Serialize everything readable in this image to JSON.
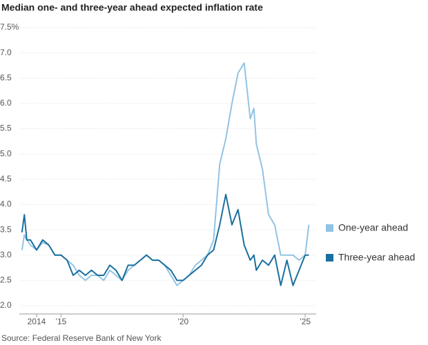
{
  "chart_data": {
    "type": "line",
    "title": "Median one- and three-year ahead expected inflation rate",
    "source": "Source: Federal Reserve Bank of New York",
    "x": [
      2013.4,
      2013.5,
      2013.6,
      2013.75,
      2014.0,
      2014.25,
      2014.5,
      2014.75,
      2015.0,
      2015.25,
      2015.5,
      2015.75,
      2016.0,
      2016.25,
      2016.5,
      2016.75,
      2017.0,
      2017.25,
      2017.5,
      2017.75,
      2018.0,
      2018.25,
      2018.5,
      2018.75,
      2019.0,
      2019.25,
      2019.5,
      2019.75,
      2020.0,
      2020.25,
      2020.5,
      2020.75,
      2021.0,
      2021.25,
      2021.5,
      2021.75,
      2022.0,
      2022.25,
      2022.5,
      2022.75,
      2022.9,
      2023.0,
      2023.25,
      2023.5,
      2023.75,
      2024.0,
      2024.25,
      2024.5,
      2024.75,
      2025.0,
      2025.15
    ],
    "series": [
      {
        "name": "One-year ahead",
        "color": "#92c3e4",
        "values": [
          3.1,
          3.4,
          3.3,
          3.2,
          3.1,
          3.25,
          3.2,
          3.0,
          3.0,
          2.9,
          2.8,
          2.6,
          2.5,
          2.6,
          2.6,
          2.5,
          2.7,
          2.6,
          2.5,
          2.7,
          2.8,
          2.9,
          3.0,
          2.9,
          2.9,
          2.8,
          2.6,
          2.4,
          2.5,
          2.6,
          2.8,
          2.9,
          3.0,
          3.3,
          4.8,
          5.3,
          6.0,
          6.6,
          6.8,
          5.7,
          5.9,
          5.2,
          4.7,
          3.8,
          3.6,
          3.0,
          3.0,
          3.0,
          2.9,
          3.0,
          3.6
        ]
      },
      {
        "name": "Three-year ahead",
        "color": "#1a6f9e",
        "values": [
          3.45,
          3.8,
          3.3,
          3.3,
          3.1,
          3.3,
          3.2,
          3.0,
          3.0,
          2.9,
          2.6,
          2.7,
          2.6,
          2.7,
          2.6,
          2.6,
          2.8,
          2.7,
          2.5,
          2.8,
          2.8,
          2.9,
          3.0,
          2.9,
          2.9,
          2.8,
          2.7,
          2.5,
          2.5,
          2.6,
          2.7,
          2.8,
          3.0,
          3.1,
          3.6,
          4.2,
          3.6,
          3.9,
          3.2,
          2.9,
          3.0,
          2.7,
          2.9,
          2.8,
          3.0,
          2.4,
          2.9,
          2.4,
          2.7,
          3.0,
          3.0
        ]
      }
    ],
    "xlim": [
      2013.35,
      2025.45
    ],
    "xticks": [
      {
        "value": 2014,
        "label": "2014"
      },
      {
        "value": 2015,
        "label": "’15"
      },
      {
        "value": 2020,
        "label": "’20"
      },
      {
        "value": 2025,
        "label": "’25"
      }
    ],
    "ylim": [
      2,
      7.5
    ],
    "yticks": [
      {
        "value": 2,
        "label": "2.0"
      },
      {
        "value": 2.5,
        "label": "2.5"
      },
      {
        "value": 3,
        "label": "3.0"
      },
      {
        "value": 3.5,
        "label": "3.5"
      },
      {
        "value": 4,
        "label": "4.0"
      },
      {
        "value": 4.5,
        "label": "4.5"
      },
      {
        "value": 5,
        "label": "5.0"
      },
      {
        "value": 5.5,
        "label": "5.5"
      },
      {
        "value": 6,
        "label": "6.0"
      },
      {
        "value": 6.5,
        "label": "6.5"
      },
      {
        "value": 7,
        "label": "7.0"
      },
      {
        "value": 7.5,
        "label": "7.5%"
      }
    ],
    "grid": true,
    "legend": "right"
  }
}
